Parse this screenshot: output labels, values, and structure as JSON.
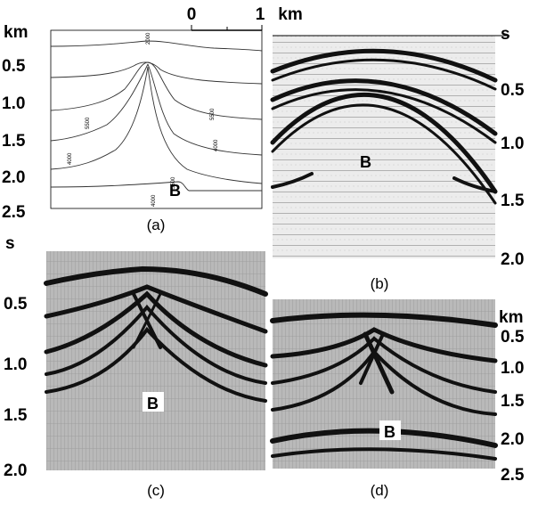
{
  "scale_bar": {
    "start": "0",
    "end": "1",
    "unit": "km"
  },
  "panels": [
    {
      "label": "(a)",
      "axis_unit": "km",
      "ticks": [
        "0.5",
        "1.0",
        "1.5",
        "2.0",
        "2.5"
      ],
      "marker": "B",
      "annotations": [
        "2000",
        "5500",
        "4000",
        "5500",
        "4000",
        "5500",
        "4000"
      ]
    },
    {
      "label": "(b)",
      "axis_unit": "s",
      "ticks": [
        "0.5",
        "1.0",
        "1.5",
        "2.0"
      ],
      "marker": "B"
    },
    {
      "label": "(c)",
      "axis_unit": "s",
      "ticks": [
        "0.5",
        "1.0",
        "1.5",
        "2.0"
      ],
      "marker": "B"
    },
    {
      "label": "(d)",
      "axis_unit": "km",
      "ticks": [
        "0.5",
        "1.0",
        "1.5",
        "2.0",
        "2.5"
      ],
      "marker": "B"
    }
  ]
}
